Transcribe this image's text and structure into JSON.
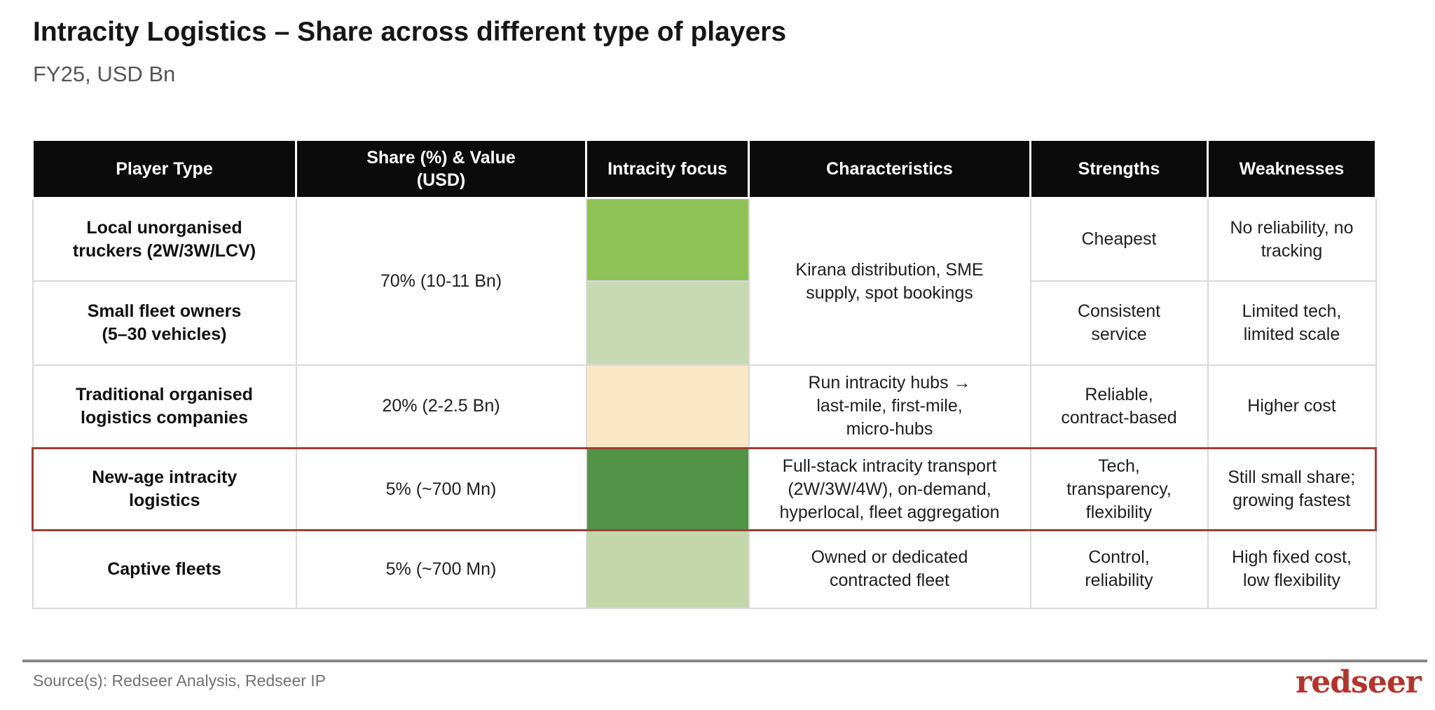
{
  "header": {
    "title": "Intracity Logistics – Share across different type of players",
    "subtitle": "FY25, USD Bn"
  },
  "table": {
    "columns": [
      "Player Type",
      "Share (%) & Value\n(USD)",
      "Intracity focus",
      "Characteristics",
      "Strengths",
      "Weaknesses"
    ],
    "rows": [
      {
        "player_type": "Local unorganised\ntruckers (2W/3W/LCV)",
        "share": "70% (10-11 Bn)",
        "focus_color": "#8ec257",
        "characteristics": "Kirana distribution, SME\nsupply, spot bookings",
        "strengths": "Cheapest",
        "weaknesses": "No reliability, no\ntracking"
      },
      {
        "player_type": "Small fleet owners\n(5–30 vehicles)",
        "focus_color": "#c7d9b2",
        "strengths": "Consistent\nservice",
        "weaknesses": "Limited tech,\nlimited scale"
      },
      {
        "player_type": "Traditional organised\nlogistics companies",
        "share": "20% (2-2.5 Bn)",
        "focus_color": "#fbe7c6",
        "characteristics": "Run intracity hubs →\nlast-mile, first-mile,\nmicro-hubs",
        "strengths": "Reliable,\ncontract-based",
        "weaknesses": "Higher cost"
      },
      {
        "player_type": "New-age intracity\nlogistics",
        "share": "5% (~700 Mn)",
        "focus_color": "#519447",
        "characteristics": "Full-stack intracity transport\n(2W/3W/4W), on-demand,\nhyperlocal, fleet aggregation",
        "strengths": "Tech,\ntransparency,\nflexibility",
        "weaknesses": "Still small share;\ngrowing fastest",
        "highlighted": true
      },
      {
        "player_type": "Captive fleets",
        "share": "5% (~700 Mn)",
        "focus_color": "#c3d7aa",
        "characteristics": "Owned or dedicated\ncontracted fleet",
        "strengths": "Control,\nreliability",
        "weaknesses": "High fixed cost,\nlow flexibility"
      }
    ]
  },
  "footer": {
    "source": "Source(s): Redseer Analysis, Redseer IP",
    "logo_text": "redseer"
  },
  "colors": {
    "header_bg": "#0b0b0b",
    "header_text": "#ffffff",
    "grid_line": "#d9d9d9",
    "highlight_border": "#9b4136",
    "logo_red": "#b2342c",
    "focus_green_bright": "#8ec257",
    "focus_green_light": "#c7d9b2",
    "focus_cream": "#fbe7c6",
    "focus_green_dark": "#519447",
    "focus_green_soft": "#c3d7aa"
  }
}
